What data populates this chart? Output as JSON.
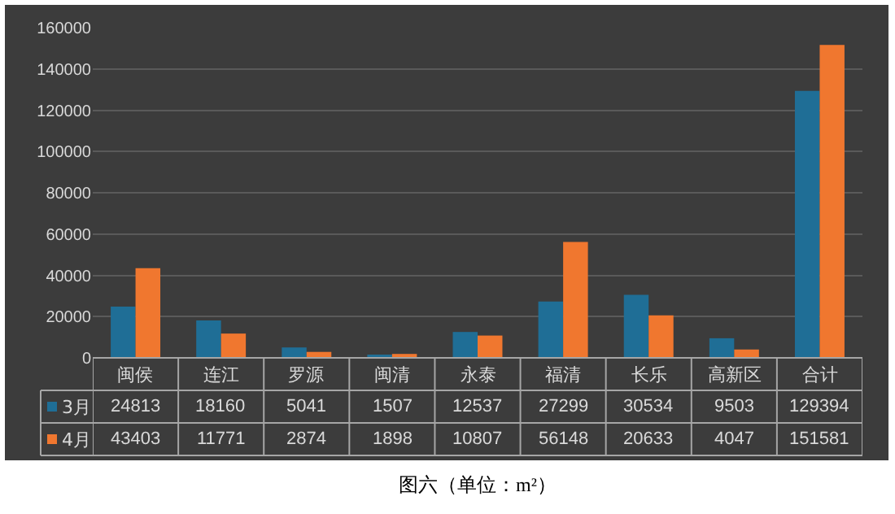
{
  "chart_data": {
    "type": "bar",
    "categories": [
      "闽侯",
      "连江",
      "罗源",
      "闽清",
      "永泰",
      "福清",
      "长乐",
      "高新区",
      "合计"
    ],
    "series": [
      {
        "name": "3月",
        "color": "#1f6e96",
        "values": [
          24813,
          18160,
          5041,
          1507,
          12537,
          27299,
          30534,
          9503,
          129394
        ]
      },
      {
        "name": "4月",
        "color": "#f0772f",
        "values": [
          43403,
          11771,
          2874,
          1898,
          10807,
          56148,
          20633,
          4047,
          151581
        ]
      }
    ],
    "ylim": [
      0,
      160000
    ],
    "yticks": [
      0,
      20000,
      40000,
      60000,
      80000,
      100000,
      120000,
      140000,
      160000
    ],
    "grid": "y",
    "legend": "bottom",
    "data_labels": true,
    "annotations": [
      "图六（单位：m²）"
    ]
  }
}
